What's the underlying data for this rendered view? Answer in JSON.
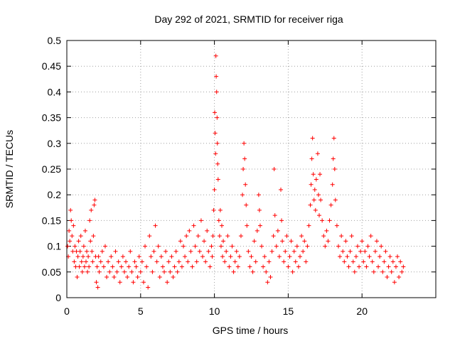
{
  "chart_data": {
    "type": "scatter",
    "title": "Day 292 of 2021, SRMTID for receiver riga",
    "xlabel": "GPS time / hours",
    "ylabel": "SRMTID / TECUs",
    "xlim": [
      0,
      25
    ],
    "ylim": [
      0,
      0.5
    ],
    "xticks": [
      0,
      5,
      10,
      15,
      20
    ],
    "yticks": [
      0,
      0.05,
      0.1,
      0.15,
      0.2,
      0.25,
      0.3,
      0.35,
      0.4,
      0.45,
      0.5
    ],
    "xtick_labels": [
      "0",
      "5",
      "10",
      "15",
      "20"
    ],
    "ytick_labels": [
      "0",
      "0.05",
      "0.1",
      "0.15",
      "0.2",
      "0.25",
      "0.3",
      "0.35",
      "0.4",
      "0.45",
      "0.5"
    ],
    "grid": true,
    "marker": "+",
    "color": "#ff0000",
    "series": [
      {
        "name": "SRMTID",
        "points": [
          [
            0.05,
            0.1
          ],
          [
            0.1,
            0.08
          ],
          [
            0.15,
            0.13
          ],
          [
            0.2,
            0.11
          ],
          [
            0.25,
            0.17
          ],
          [
            0.3,
            0.15
          ],
          [
            0.35,
            0.12
          ],
          [
            0.4,
            0.09
          ],
          [
            0.45,
            0.14
          ],
          [
            0.5,
            0.07
          ],
          [
            0.55,
            0.1
          ],
          [
            0.6,
            0.06
          ],
          [
            0.65,
            0.09
          ],
          [
            0.7,
            0.04
          ],
          [
            0.75,
            0.08
          ],
          [
            0.8,
            0.11
          ],
          [
            0.85,
            0.06
          ],
          [
            0.9,
            0.09
          ],
          [
            0.95,
            0.12
          ],
          [
            1.0,
            0.07
          ],
          [
            1.05,
            0.05
          ],
          [
            1.1,
            0.08
          ],
          [
            1.15,
            0.1
          ],
          [
            1.2,
            0.06
          ],
          [
            1.25,
            0.13
          ],
          [
            1.3,
            0.07
          ],
          [
            1.35,
            0.09
          ],
          [
            1.4,
            0.05
          ],
          [
            1.45,
            0.08
          ],
          [
            1.5,
            0.06
          ],
          [
            1.55,
            0.15
          ],
          [
            1.6,
            0.11
          ],
          [
            1.65,
            0.17
          ],
          [
            1.7,
            0.09
          ],
          [
            1.75,
            0.07
          ],
          [
            1.8,
            0.12
          ],
          [
            1.85,
            0.18
          ],
          [
            1.9,
            0.19
          ],
          [
            1.95,
            0.08
          ],
          [
            2.0,
            0.03
          ],
          [
            2.05,
            0.06
          ],
          [
            2.1,
            0.02
          ],
          [
            2.15,
            0.08
          ],
          [
            2.2,
            0.05
          ],
          [
            2.3,
            0.07
          ],
          [
            2.4,
            0.09
          ],
          [
            2.5,
            0.06
          ],
          [
            2.6,
            0.1
          ],
          [
            2.7,
            0.04
          ],
          [
            2.8,
            0.07
          ],
          [
            2.9,
            0.05
          ],
          [
            3.0,
            0.08
          ],
          [
            3.1,
            0.06
          ],
          [
            3.2,
            0.04
          ],
          [
            3.3,
            0.09
          ],
          [
            3.4,
            0.05
          ],
          [
            3.5,
            0.07
          ],
          [
            3.6,
            0.03
          ],
          [
            3.7,
            0.06
          ],
          [
            3.8,
            0.08
          ],
          [
            3.9,
            0.05
          ],
          [
            4.0,
            0.07
          ],
          [
            4.1,
            0.04
          ],
          [
            4.2,
            0.06
          ],
          [
            4.3,
            0.09
          ],
          [
            4.4,
            0.05
          ],
          [
            4.5,
            0.03
          ],
          [
            4.6,
            0.07
          ],
          [
            4.7,
            0.06
          ],
          [
            4.8,
            0.04
          ],
          [
            4.9,
            0.08
          ],
          [
            5.0,
            0.05
          ],
          [
            5.1,
            0.07
          ],
          [
            5.2,
            0.03
          ],
          [
            5.3,
            0.1
          ],
          [
            5.4,
            0.06
          ],
          [
            5.5,
            0.02
          ],
          [
            5.6,
            0.12
          ],
          [
            5.7,
            0.08
          ],
          [
            5.8,
            0.05
          ],
          [
            5.9,
            0.09
          ],
          [
            6.0,
            0.14
          ],
          [
            6.1,
            0.07
          ],
          [
            6.2,
            0.1
          ],
          [
            6.3,
            0.04
          ],
          [
            6.4,
            0.08
          ],
          [
            6.5,
            0.06
          ],
          [
            6.6,
            0.05
          ],
          [
            6.7,
            0.09
          ],
          [
            6.8,
            0.03
          ],
          [
            6.9,
            0.07
          ],
          [
            7.0,
            0.05
          ],
          [
            7.1,
            0.08
          ],
          [
            7.2,
            0.04
          ],
          [
            7.3,
            0.06
          ],
          [
            7.4,
            0.09
          ],
          [
            7.5,
            0.05
          ],
          [
            7.6,
            0.07
          ],
          [
            7.7,
            0.11
          ],
          [
            7.8,
            0.06
          ],
          [
            7.9,
            0.1
          ],
          [
            8.0,
            0.08
          ],
          [
            8.1,
            0.12
          ],
          [
            8.2,
            0.07
          ],
          [
            8.3,
            0.13
          ],
          [
            8.4,
            0.09
          ],
          [
            8.5,
            0.06
          ],
          [
            8.6,
            0.14
          ],
          [
            8.7,
            0.1
          ],
          [
            8.8,
            0.07
          ],
          [
            8.9,
            0.12
          ],
          [
            9.0,
            0.09
          ],
          [
            9.1,
            0.15
          ],
          [
            9.2,
            0.08
          ],
          [
            9.3,
            0.11
          ],
          [
            9.4,
            0.07
          ],
          [
            9.5,
            0.13
          ],
          [
            9.6,
            0.09
          ],
          [
            9.7,
            0.06
          ],
          [
            9.8,
            0.1
          ],
          [
            9.85,
            0.08
          ],
          [
            9.9,
            0.12
          ],
          [
            9.95,
            0.17
          ],
          [
            10.0,
            0.21
          ],
          [
            10.02,
            0.36
          ],
          [
            10.05,
            0.32
          ],
          [
            10.08,
            0.28
          ],
          [
            10.1,
            0.47
          ],
          [
            10.12,
            0.43
          ],
          [
            10.15,
            0.4
          ],
          [
            10.18,
            0.35
          ],
          [
            10.2,
            0.3
          ],
          [
            10.22,
            0.26
          ],
          [
            10.25,
            0.23
          ],
          [
            10.3,
            0.15
          ],
          [
            10.35,
            0.12
          ],
          [
            10.4,
            0.17
          ],
          [
            10.45,
            0.1
          ],
          [
            10.5,
            0.14
          ],
          [
            10.55,
            0.08
          ],
          [
            10.6,
            0.11
          ],
          [
            10.7,
            0.07
          ],
          [
            10.8,
            0.09
          ],
          [
            10.9,
            0.12
          ],
          [
            11.0,
            0.06
          ],
          [
            11.1,
            0.08
          ],
          [
            11.2,
            0.1
          ],
          [
            11.3,
            0.05
          ],
          [
            11.4,
            0.07
          ],
          [
            11.5,
            0.09
          ],
          [
            11.6,
            0.06
          ],
          [
            11.7,
            0.08
          ],
          [
            11.8,
            0.12
          ],
          [
            11.9,
            0.2
          ],
          [
            11.95,
            0.25
          ],
          [
            12.0,
            0.3
          ],
          [
            12.05,
            0.27
          ],
          [
            12.1,
            0.22
          ],
          [
            12.15,
            0.18
          ],
          [
            12.2,
            0.14
          ],
          [
            12.3,
            0.09
          ],
          [
            12.4,
            0.06
          ],
          [
            12.5,
            0.08
          ],
          [
            12.6,
            0.05
          ],
          [
            12.7,
            0.11
          ],
          [
            12.8,
            0.07
          ],
          [
            12.9,
            0.13
          ],
          [
            13.0,
            0.2
          ],
          [
            13.05,
            0.17
          ],
          [
            13.1,
            0.14
          ],
          [
            13.2,
            0.1
          ],
          [
            13.3,
            0.06
          ],
          [
            13.4,
            0.08
          ],
          [
            13.5,
            0.05
          ],
          [
            13.6,
            0.03
          ],
          [
            13.7,
            0.07
          ],
          [
            13.8,
            0.04
          ],
          [
            13.9,
            0.09
          ],
          [
            14.0,
            0.12
          ],
          [
            14.05,
            0.25
          ],
          [
            14.1,
            0.16
          ],
          [
            14.2,
            0.1
          ],
          [
            14.3,
            0.13
          ],
          [
            14.4,
            0.08
          ],
          [
            14.5,
            0.21
          ],
          [
            14.55,
            0.15
          ],
          [
            14.6,
            0.11
          ],
          [
            14.7,
            0.07
          ],
          [
            14.8,
            0.09
          ],
          [
            14.9,
            0.12
          ],
          [
            15.0,
            0.06
          ],
          [
            15.1,
            0.08
          ],
          [
            15.2,
            0.11
          ],
          [
            15.3,
            0.05
          ],
          [
            15.4,
            0.09
          ],
          [
            15.5,
            0.07
          ],
          [
            15.6,
            0.1
          ],
          [
            15.7,
            0.06
          ],
          [
            15.8,
            0.08
          ],
          [
            15.9,
            0.12
          ],
          [
            16.0,
            0.09
          ],
          [
            16.1,
            0.11
          ],
          [
            16.2,
            0.07
          ],
          [
            16.3,
            0.1
          ],
          [
            16.4,
            0.14
          ],
          [
            16.5,
            0.18
          ],
          [
            16.55,
            0.22
          ],
          [
            16.6,
            0.27
          ],
          [
            16.65,
            0.31
          ],
          [
            16.7,
            0.24
          ],
          [
            16.75,
            0.19
          ],
          [
            16.8,
            0.21
          ],
          [
            16.85,
            0.17
          ],
          [
            16.9,
            0.23
          ],
          [
            17.0,
            0.28
          ],
          [
            17.05,
            0.2
          ],
          [
            17.1,
            0.16
          ],
          [
            17.15,
            0.24
          ],
          [
            17.2,
            0.19
          ],
          [
            17.3,
            0.15
          ],
          [
            17.4,
            0.12
          ],
          [
            17.5,
            0.1
          ],
          [
            17.6,
            0.13
          ],
          [
            17.7,
            0.11
          ],
          [
            17.8,
            0.15
          ],
          [
            17.9,
            0.18
          ],
          [
            18.0,
            0.22
          ],
          [
            18.05,
            0.27
          ],
          [
            18.1,
            0.31
          ],
          [
            18.15,
            0.25
          ],
          [
            18.2,
            0.19
          ],
          [
            18.3,
            0.14
          ],
          [
            18.4,
            0.1
          ],
          [
            18.5,
            0.08
          ],
          [
            18.6,
            0.12
          ],
          [
            18.7,
            0.09
          ],
          [
            18.8,
            0.07
          ],
          [
            18.9,
            0.11
          ],
          [
            19.0,
            0.08
          ],
          [
            19.1,
            0.06
          ],
          [
            19.2,
            0.09
          ],
          [
            19.3,
            0.12
          ],
          [
            19.4,
            0.07
          ],
          [
            19.5,
            0.05
          ],
          [
            19.6,
            0.08
          ],
          [
            19.7,
            0.1
          ],
          [
            19.8,
            0.06
          ],
          [
            19.9,
            0.09
          ],
          [
            20.0,
            0.11
          ],
          [
            20.1,
            0.07
          ],
          [
            20.2,
            0.09
          ],
          [
            20.3,
            0.06
          ],
          [
            20.4,
            0.1
          ],
          [
            20.5,
            0.08
          ],
          [
            20.6,
            0.12
          ],
          [
            20.7,
            0.07
          ],
          [
            20.8,
            0.05
          ],
          [
            20.9,
            0.09
          ],
          [
            21.0,
            0.11
          ],
          [
            21.1,
            0.06
          ],
          [
            21.2,
            0.08
          ],
          [
            21.3,
            0.1
          ],
          [
            21.4,
            0.05
          ],
          [
            21.5,
            0.07
          ],
          [
            21.6,
            0.09
          ],
          [
            21.7,
            0.04
          ],
          [
            21.8,
            0.06
          ],
          [
            21.9,
            0.08
          ],
          [
            22.0,
            0.05
          ],
          [
            22.1,
            0.07
          ],
          [
            22.2,
            0.03
          ],
          [
            22.3,
            0.06
          ],
          [
            22.4,
            0.08
          ],
          [
            22.5,
            0.04
          ],
          [
            22.6,
            0.07
          ],
          [
            22.7,
            0.05
          ],
          [
            22.8,
            0.06
          ]
        ]
      }
    ]
  }
}
